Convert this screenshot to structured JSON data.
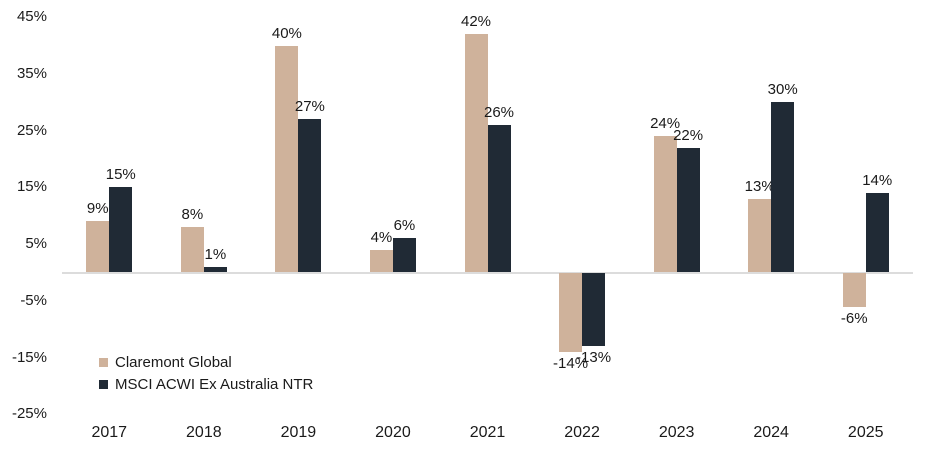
{
  "chart_data": {
    "type": "bar",
    "title": "",
    "xlabel": "",
    "ylabel": "",
    "categories": [
      "2017",
      "2018",
      "2019",
      "2020",
      "2021",
      "2022",
      "2023",
      "2024",
      "2025"
    ],
    "series": [
      {
        "name": "Claremont Global",
        "color": "#CFB29B",
        "values": [
          9,
          8,
          40,
          4,
          42,
          -14,
          24,
          13,
          -6
        ]
      },
      {
        "name": "MSCI ACWI Ex Australia NTR",
        "color": "#202A35",
        "values": [
          15,
          1,
          27,
          6,
          26,
          -13,
          22,
          30,
          14
        ]
      }
    ],
    "data_labels": [
      [
        "9%",
        "8%",
        "40%",
        "4%",
        "42%",
        "-14%",
        "24%",
        "13%",
        "-6%"
      ],
      [
        "15%",
        "1%",
        "27%",
        "6%",
        "26%",
        "-13%",
        "22%",
        "30%",
        "14%"
      ]
    ],
    "value_suffix": "%",
    "y_ticks": [
      {
        "label": "45%",
        "value": 45
      },
      {
        "label": "35%",
        "value": 35
      },
      {
        "label": "25%",
        "value": 25
      },
      {
        "label": "15%",
        "value": 15
      },
      {
        "label": "5%",
        "value": 5
      },
      {
        "label": "-5%",
        "value": -5
      },
      {
        "label": "-15%",
        "value": -15
      },
      {
        "label": "-25%",
        "value": -25
      }
    ],
    "ylim": [
      -25,
      45
    ],
    "grid": "off",
    "legend_position": "inside-bottom-left"
  },
  "legend": {
    "items": [
      {
        "label": "Claremont Global",
        "color": "#CFB29B"
      },
      {
        "label": "MSCI ACWI Ex Australia NTR",
        "color": "#202A35"
      }
    ]
  },
  "colors": {
    "claremont": "#CFB29B",
    "msci": "#202A35",
    "axis_line": "#DCDCDC",
    "text": "#1A1A1A",
    "background": "#FFFFFF"
  }
}
